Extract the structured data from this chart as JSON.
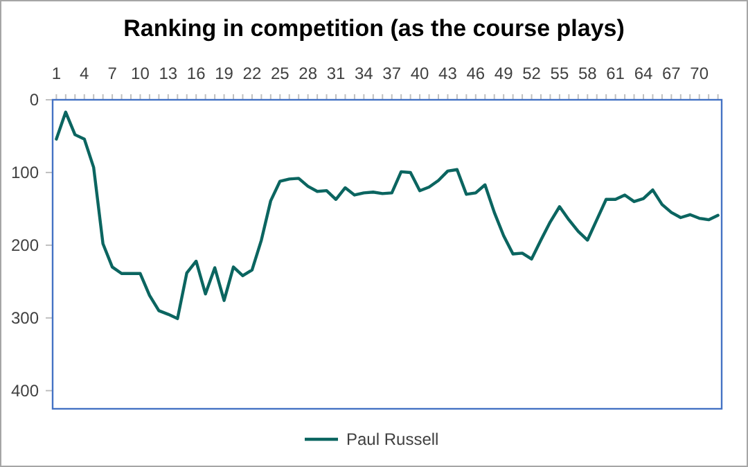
{
  "chart_data": {
    "type": "line",
    "title": "Ranking in competition (as the course plays)",
    "x": [
      1,
      2,
      3,
      4,
      5,
      6,
      7,
      8,
      9,
      10,
      11,
      12,
      13,
      14,
      15,
      16,
      17,
      18,
      19,
      20,
      21,
      22,
      23,
      24,
      25,
      26,
      27,
      28,
      29,
      30,
      31,
      32,
      33,
      34,
      35,
      36,
      37,
      38,
      39,
      40,
      41,
      42,
      43,
      44,
      45,
      46,
      47,
      48,
      49,
      50,
      51,
      52,
      53,
      54,
      55,
      56,
      57,
      58,
      59,
      60,
      61,
      62,
      63,
      64,
      65,
      66,
      67,
      68,
      69,
      70,
      71,
      72
    ],
    "series": [
      {
        "name": "Paul Russell",
        "color": "#0b6560",
        "values": [
          54,
          17,
          48,
          54,
          93,
          198,
          230,
          239,
          239,
          239,
          269,
          290,
          295,
          301,
          238,
          222,
          267,
          231,
          276,
          230,
          242,
          234,
          193,
          139,
          112,
          109,
          108,
          119,
          126,
          125,
          137,
          121,
          131,
          128,
          127,
          129,
          128,
          99,
          100,
          125,
          120,
          111,
          98,
          96,
          130,
          128,
          117,
          155,
          187,
          212,
          211,
          219,
          193,
          168,
          147,
          165,
          181,
          193,
          165,
          137,
          137,
          131,
          140,
          136,
          124,
          144,
          155,
          162,
          158,
          163,
          165,
          159
        ]
      }
    ],
    "xlim": [
      0.6,
      72.4
    ],
    "xticks": [
      1,
      {
        "value": 2,
        "label": null
      },
      {
        "value": 3,
        "label": null
      },
      4,
      {
        "value": 5,
        "label": null
      },
      {
        "value": 6,
        "label": null
      },
      7,
      {
        "value": 8,
        "label": null
      },
      {
        "value": 9,
        "label": null
      },
      10,
      {
        "value": 11,
        "label": null
      },
      {
        "value": 12,
        "label": null
      },
      13,
      {
        "value": 14,
        "label": null
      },
      {
        "value": 15,
        "label": null
      },
      16,
      {
        "value": 17,
        "label": null
      },
      {
        "value": 18,
        "label": null
      },
      19,
      {
        "value": 20,
        "label": null
      },
      {
        "value": 21,
        "label": null
      },
      22,
      {
        "value": 23,
        "label": null
      },
      {
        "value": 24,
        "label": null
      },
      25,
      {
        "value": 26,
        "label": null
      },
      {
        "value": 27,
        "label": null
      },
      28,
      {
        "value": 29,
        "label": null
      },
      {
        "value": 30,
        "label": null
      },
      31,
      {
        "value": 32,
        "label": null
      },
      {
        "value": 33,
        "label": null
      },
      34,
      {
        "value": 35,
        "label": null
      },
      {
        "value": 36,
        "label": null
      },
      37,
      {
        "value": 38,
        "label": null
      },
      {
        "value": 39,
        "label": null
      },
      40,
      {
        "value": 41,
        "label": null
      },
      {
        "value": 42,
        "label": null
      },
      43,
      {
        "value": 44,
        "label": null
      },
      {
        "value": 45,
        "label": null
      },
      46,
      {
        "value": 47,
        "label": null
      },
      {
        "value": 48,
        "label": null
      },
      49,
      {
        "value": 50,
        "label": null
      },
      {
        "value": 51,
        "label": null
      },
      52,
      {
        "value": 53,
        "label": null
      },
      {
        "value": 54,
        "label": null
      },
      55,
      {
        "value": 56,
        "label": null
      },
      {
        "value": 57,
        "label": null
      },
      58,
      {
        "value": 59,
        "label": null
      },
      {
        "value": 60,
        "label": null
      },
      61,
      {
        "value": 62,
        "label": null
      },
      {
        "value": 63,
        "label": null
      },
      64,
      {
        "value": 65,
        "label": null
      },
      {
        "value": 66,
        "label": null
      },
      67,
      {
        "value": 68,
        "label": null
      },
      {
        "value": 69,
        "label": null
      },
      70,
      {
        "value": 71,
        "label": null
      },
      {
        "value": 72,
        "label": null
      }
    ],
    "ylim": [
      425,
      0
    ],
    "yticks": [
      0,
      100,
      200,
      300,
      400
    ],
    "grid": false,
    "legend": "bottom",
    "marker": "none",
    "line_style": "solid"
  }
}
